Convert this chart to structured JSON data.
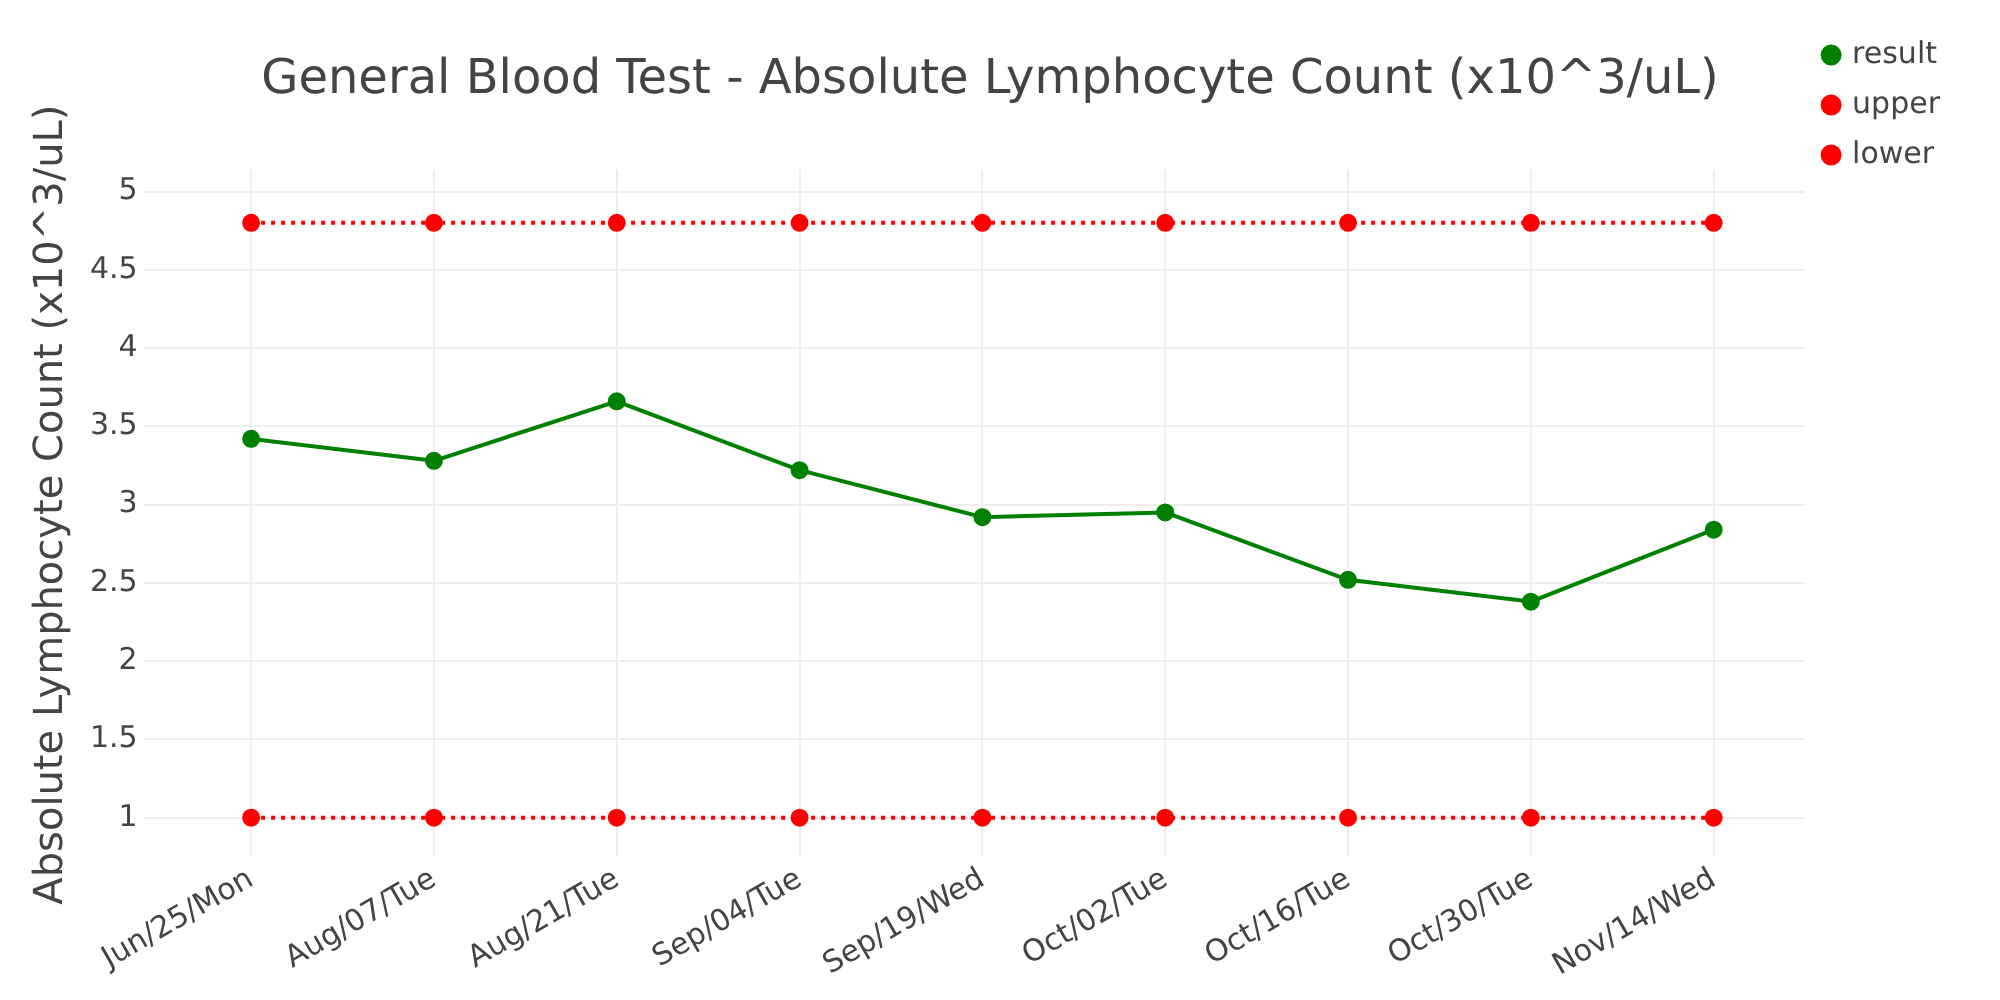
{
  "chart_data": {
    "type": "line",
    "title": "General Blood Test - Absolute Lymphocyte Count (x10^3/uL)",
    "ylabel": "Absolute Lymphocyte Count (x10^3/uL)",
    "categories": [
      "Jun/25/Mon",
      "Aug/07/Tue",
      "Aug/21/Tue",
      "Sep/04/Tue",
      "Sep/19/Wed",
      "Oct/02/Tue",
      "Oct/16/Tue",
      "Oct/30/Tue",
      "Nov/14/Wed"
    ],
    "series": [
      {
        "name": "result",
        "color": "#008000",
        "line_style": "solid",
        "values": [
          3.42,
          3.28,
          3.66,
          3.22,
          2.92,
          2.95,
          2.52,
          2.38,
          2.84
        ]
      },
      {
        "name": "upper",
        "color": "#ff0000",
        "line_style": "dotted",
        "values": [
          4.8,
          4.8,
          4.8,
          4.8,
          4.8,
          4.8,
          4.8,
          4.8,
          4.8
        ]
      },
      {
        "name": "lower",
        "color": "#ff0000",
        "line_style": "dotted",
        "values": [
          1,
          1,
          1,
          1,
          1,
          1,
          1,
          1,
          1
        ]
      }
    ],
    "ylim": [
      0.86,
      5.14
    ],
    "yticks": [
      1,
      1.5,
      2,
      2.5,
      3,
      3.5,
      4,
      4.5,
      5
    ],
    "grid": true,
    "legend": "top right",
    "marker": "circle"
  }
}
